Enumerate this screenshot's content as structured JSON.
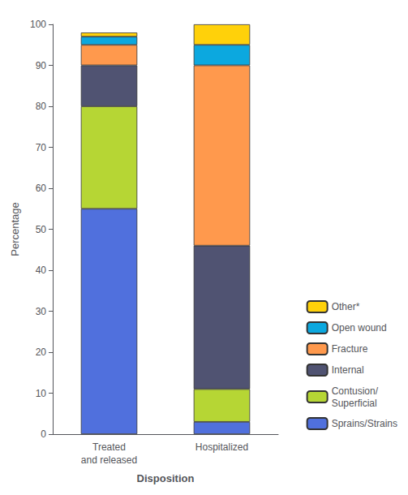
{
  "chart_data": {
    "type": "bar",
    "stacked": true,
    "categories": [
      "Treated\nand released",
      "Hospitalized"
    ],
    "series": [
      {
        "name": "Sprains/Strains",
        "values": [
          55,
          3
        ]
      },
      {
        "name": "Contusion/\nSuperficial",
        "values": [
          25,
          8
        ]
      },
      {
        "name": "Internal",
        "values": [
          10,
          35
        ]
      },
      {
        "name": "Fracture",
        "values": [
          5,
          44
        ]
      },
      {
        "name": "Open wound",
        "values": [
          2,
          5
        ]
      },
      {
        "name": "Other*",
        "values": [
          1,
          5
        ]
      }
    ],
    "xlabel": "Disposition",
    "ylabel": "Percentage",
    "ylim": [
      0,
      100
    ],
    "yticks": [
      0,
      10,
      20,
      30,
      40,
      50,
      60,
      70,
      80,
      90,
      100
    ],
    "grid": false,
    "legend": "lower right"
  }
}
